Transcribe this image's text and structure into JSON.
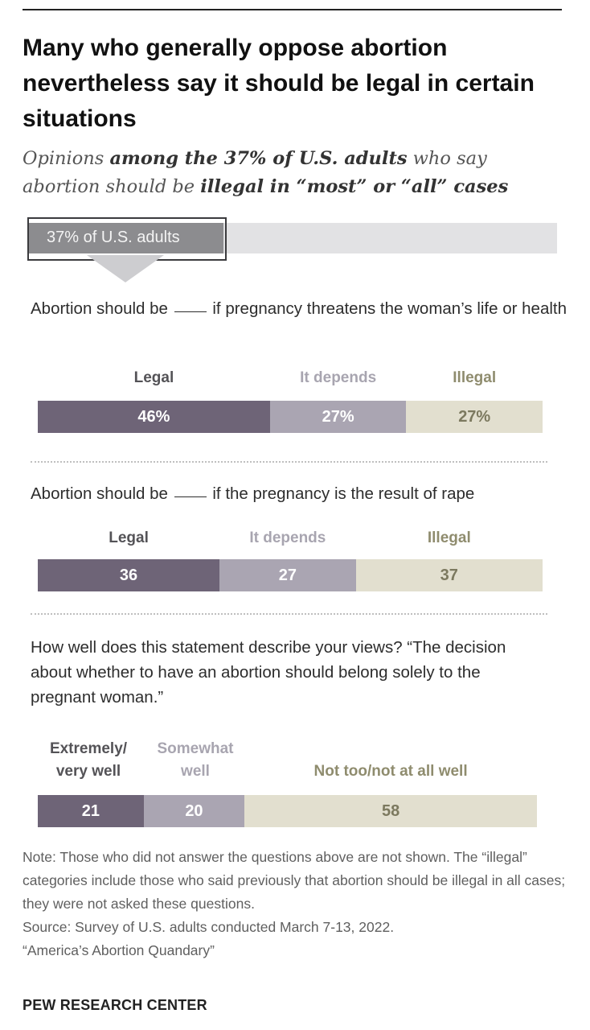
{
  "title": "Many who generally oppose abortion nevertheless say it should be legal in certain situations",
  "subtitle": {
    "s1": "Opinions ",
    "b1": "among the 37% of U.S. adults",
    "s2": " who say abortion should be ",
    "b2": "illegal in “most” or “all” cases"
  },
  "base_share": {
    "label": "37% of U.S. adults",
    "value": 37
  },
  "questions": [
    {
      "pre": "Abortion should be",
      "post": "if pregnancy threatens the woman’s life or health"
    },
    {
      "pre": "Abortion should be",
      "post": "if the pregnancy is the result of rape"
    },
    {
      "text": "How well does this statement describe your views? “The decision about whether to have an abortion should belong solely to the pregnant woman.”"
    }
  ],
  "chart_data": [
    {
      "type": "bar",
      "orientation": "horizontal-stacked",
      "question": "Abortion should be ___ if pregnancy threatens the woman’s life or health",
      "categories": [
        "Legal",
        "It depends",
        "Illegal"
      ],
      "values": [
        46,
        27,
        27
      ],
      "labels": [
        "46%",
        "27%",
        "27%"
      ],
      "colors": [
        "#6e6477",
        "#aaa5b2",
        "#e2dfcf"
      ]
    },
    {
      "type": "bar",
      "orientation": "horizontal-stacked",
      "question": "Abortion should be ___ if the pregnancy is the result of rape",
      "categories": [
        "Legal",
        "It depends",
        "Illegal"
      ],
      "values": [
        36,
        27,
        37
      ],
      "labels": [
        "36",
        "27",
        "37"
      ],
      "colors": [
        "#6e6477",
        "#aaa5b2",
        "#e2dfcf"
      ]
    },
    {
      "type": "bar",
      "orientation": "horizontal-stacked",
      "question": "How well does this statement describe your views?",
      "categories": [
        "Extremely/ very well",
        "Somewhat well",
        "Not too/not at all well"
      ],
      "values": [
        21,
        20,
        58
      ],
      "labels": [
        "21",
        "20",
        "58"
      ],
      "colors": [
        "#6e6477",
        "#aaa5b2",
        "#e2dfcf"
      ]
    }
  ],
  "note": "Note: Those who did not answer the questions above are not shown. The “illegal” categories include those who said previously that abortion should be illegal in all cases; they were not asked these questions.",
  "source": "Source: Survey of U.S. adults conducted March 7-13, 2022.",
  "report": "“America’s Abortion Quandary”",
  "brand": "PEW RESEARCH CENTER"
}
